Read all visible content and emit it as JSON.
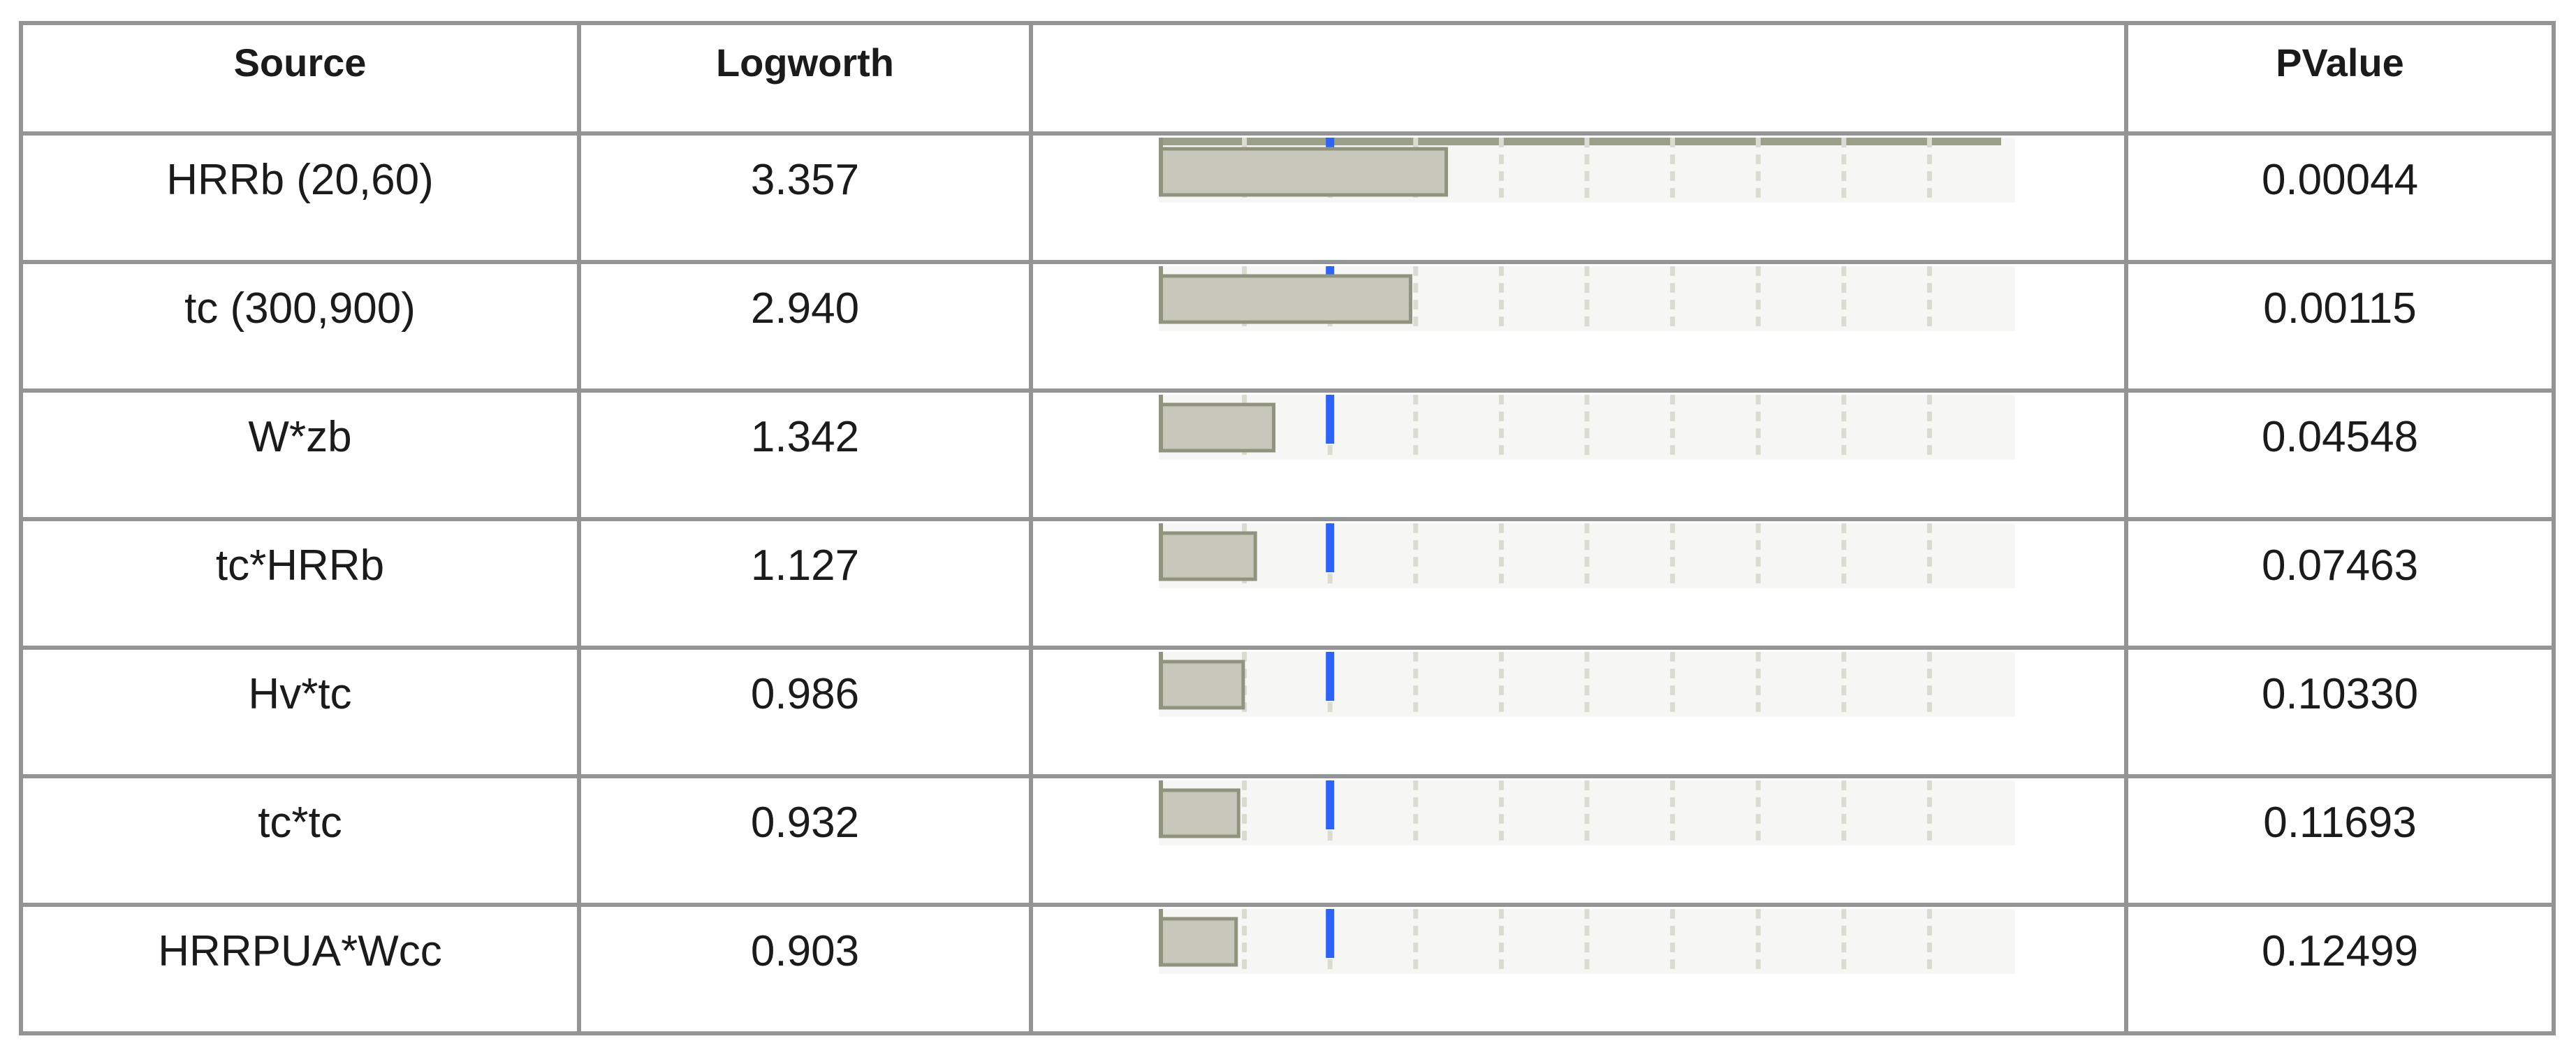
{
  "table": {
    "headers": {
      "source": "Source",
      "logworth": "Logworth",
      "chart": "",
      "pvalue": "PValue"
    },
    "rows": [
      {
        "source": "HRRb (20,60)",
        "logworth": "3.357",
        "pvalue": "0.00044"
      },
      {
        "source": "tc (300,900)",
        "logworth": "2.940",
        "pvalue": "0.00115"
      },
      {
        "source": "W*zb",
        "logworth": "1.342",
        "pvalue": "0.04548"
      },
      {
        "source": "tc*HRRb",
        "logworth": "1.127",
        "pvalue": "0.07463"
      },
      {
        "source": "Hv*tc",
        "logworth": "0.986",
        "pvalue": "0.10330"
      },
      {
        "source": "tc*tc",
        "logworth": "0.932",
        "pvalue": "0.11693"
      },
      {
        "source": "HRRPUA*Wcc",
        "logworth": "0.903",
        "pvalue": "0.12499"
      }
    ]
  },
  "chart_data": {
    "type": "bar",
    "orientation": "horizontal",
    "title": "Logworth effect-size bars (one mini bar chart per table row)",
    "categories": [
      "HRRb (20,60)",
      "tc (300,900)",
      "W*zb",
      "tc*HRRb",
      "Hv*tc",
      "tc*tc",
      "HRRPUA*Wcc"
    ],
    "values": [
      3.357,
      2.94,
      1.342,
      1.127,
      0.986,
      0.932,
      0.903
    ],
    "pvalues": [
      0.00044,
      0.00115,
      0.04548,
      0.07463,
      0.1033,
      0.11693,
      0.12499
    ],
    "xlabel": "Logworth",
    "xlim": [
      0,
      10
    ],
    "gridline_interval": 1,
    "gridline_style": "dashed",
    "reference_line_x": 2,
    "first_row_top_band": true,
    "colors": {
      "bar_fill": "#c7c8bb",
      "bar_border": "#90947e",
      "reference_line": "#2d63f6",
      "plot_background": "#f6f6f4",
      "gridline": "#dcdbd2",
      "top_band": "#9aa087",
      "table_border": "#949494",
      "text": "#1b1b1b"
    }
  }
}
